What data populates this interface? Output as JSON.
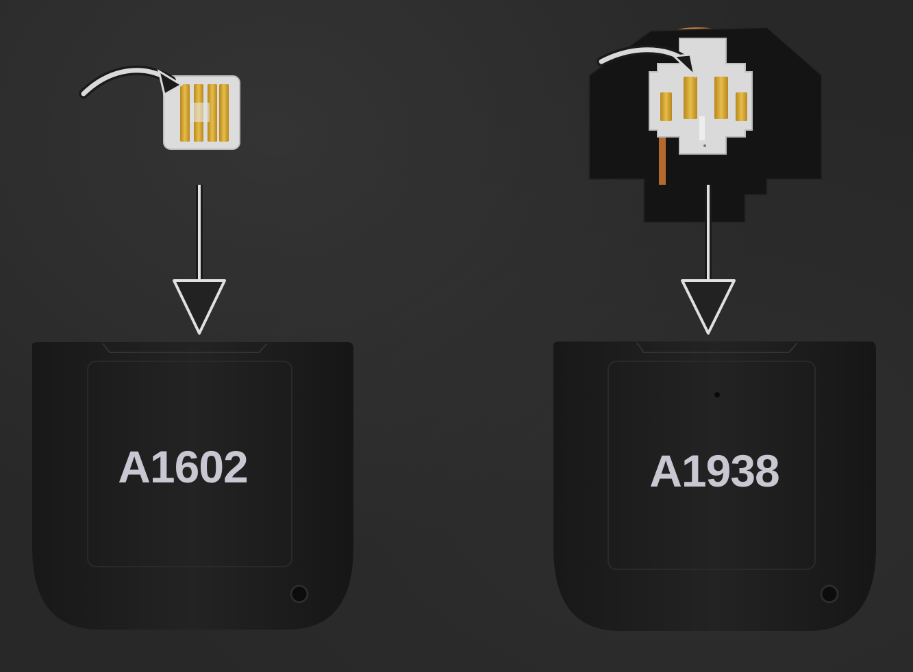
{
  "image": {
    "subject": "charging-contact-boards-and-case-lids",
    "items": [
      {
        "model_label": "A1602",
        "colors": {
          "label": "#c9c8d2",
          "case": "#1e1e1e",
          "contacts": "#d4a72c",
          "board": "#d9d9d9"
        }
      },
      {
        "model_label": "A1938",
        "colors": {
          "label": "#c9c8d2",
          "case": "#1e1e1e",
          "contacts": "#d4a72c",
          "board": "#d9d9d9",
          "coil": "#b46a2e"
        }
      }
    ],
    "background_color": "#282828"
  }
}
